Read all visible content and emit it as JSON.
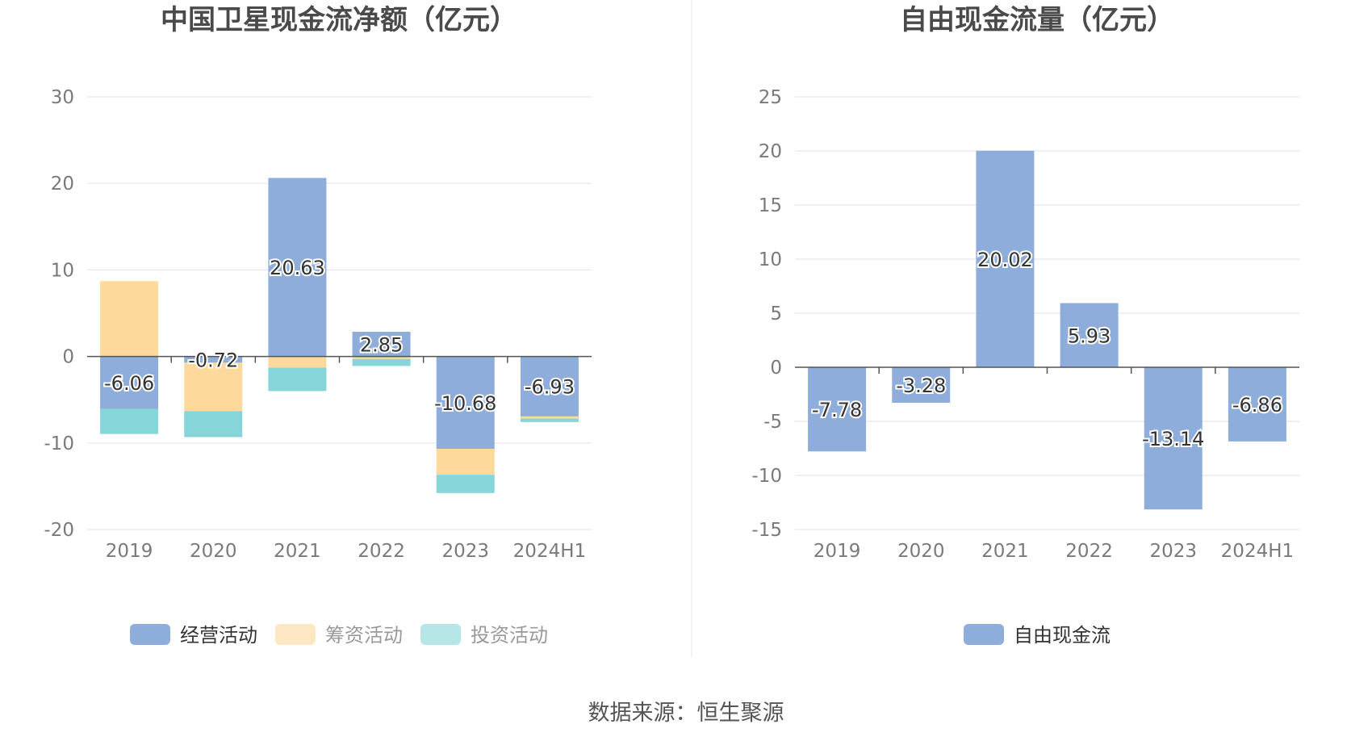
{
  "source_label": "数据来源：恒生聚源",
  "chart_data": [
    {
      "type": "bar",
      "stacked": true,
      "title": "中国卫星现金流净额（亿元）",
      "categories": [
        "2019",
        "2020",
        "2021",
        "2022",
        "2023",
        "2024H1"
      ],
      "ylim": [
        -20,
        30
      ],
      "yticks": [
        30,
        20,
        10,
        0,
        -10,
        -20
      ],
      "grid": true,
      "legend_position": "bottom",
      "series": [
        {
          "name": "经营活动",
          "color": "#8eaddb",
          "values": [
            -6.06,
            -0.72,
            20.63,
            2.85,
            -10.68,
            -6.93
          ],
          "labeled": true
        },
        {
          "name": "筹资活动",
          "color": "#fed99b",
          "values": [
            8.7,
            -5.6,
            -1.3,
            -0.3,
            -3.0,
            -0.25
          ],
          "labeled": false
        },
        {
          "name": "投资活动",
          "color": "#86d5d9",
          "values": [
            -2.9,
            -3.0,
            -2.7,
            -0.8,
            -2.1,
            -0.4
          ],
          "labeled": false
        }
      ],
      "data_labels": [
        "-6.06",
        "-0.72",
        "20.63",
        "2.85",
        "-10.68",
        "-6.93"
      ]
    },
    {
      "type": "bar",
      "title": "自由现金流量（亿元）",
      "categories": [
        "2019",
        "2020",
        "2021",
        "2022",
        "2023",
        "2024H1"
      ],
      "ylim": [
        -15,
        25
      ],
      "yticks": [
        25,
        20,
        15,
        10,
        5,
        0,
        -5,
        -10,
        -15
      ],
      "grid": true,
      "legend_position": "bottom",
      "series": [
        {
          "name": "自由现金流",
          "color": "#8eaddb",
          "values": [
            -7.78,
            -3.28,
            20.02,
            5.93,
            -13.14,
            -6.86
          ],
          "labeled": true
        }
      ],
      "data_labels": [
        "-7.78",
        "-3.28",
        "20.02",
        "5.93",
        "-13.14",
        "-6.86"
      ]
    }
  ]
}
